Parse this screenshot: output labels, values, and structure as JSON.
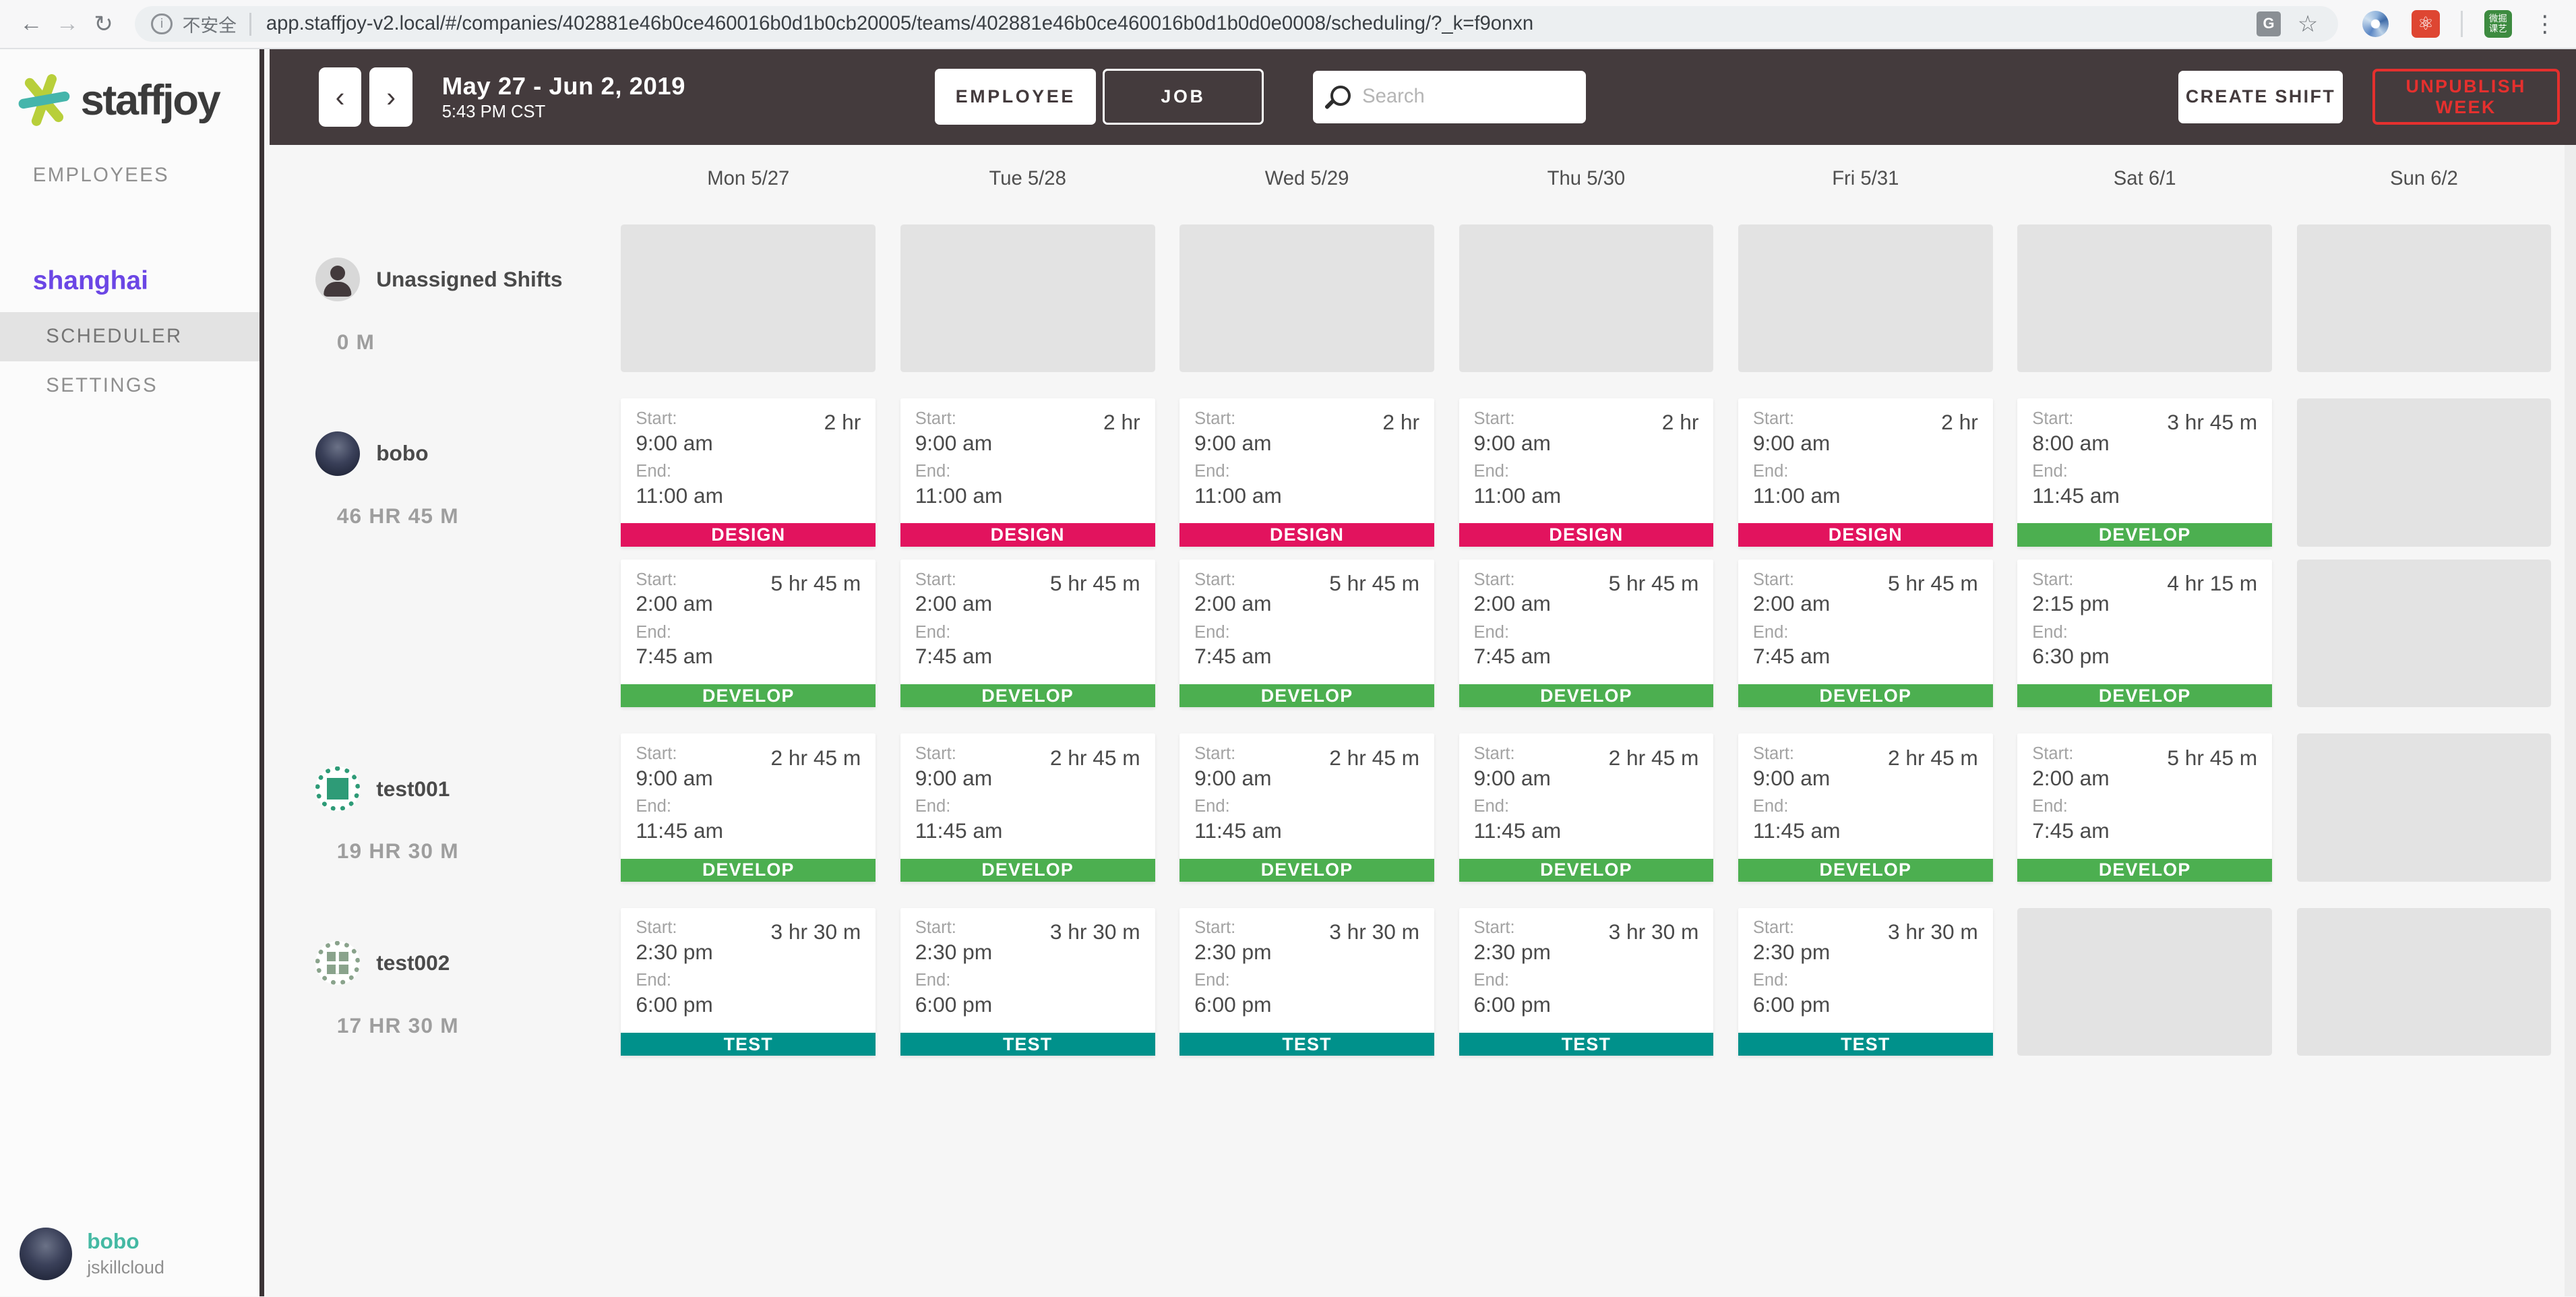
{
  "browser": {
    "security_label": "不安全",
    "url": "app.staffjoy-v2.local/#/companies/402881e46b0ce460016b0d1b0cb20005/teams/402881e46b0ce460016b0d1b0d0e0008/scheduling/?_k=f9onxn",
    "extension_seal_text": "微掘课艺",
    "icons": {
      "back": "←",
      "forward": "→",
      "reload": "↻",
      "info": "i",
      "bookmark": "☆",
      "atom": "⚛",
      "translate": "G",
      "overflow": "⋮"
    }
  },
  "sidebar": {
    "logo_text": "staffjoy",
    "employees_label": "EMPLOYEES",
    "team_name": "shanghai",
    "scheduler_label": "SCHEDULER",
    "settings_label": "SETTINGS",
    "user": {
      "name": "bobo",
      "company": "jskillcloud"
    }
  },
  "header": {
    "week_label": "May 27 - Jun 2, 2019",
    "time_label": "5:43 PM CST",
    "icons": {
      "prev": "‹",
      "next": "›"
    },
    "employee_toggle": "EMPLOYEE",
    "job_toggle": "JOB",
    "search_placeholder": "Search",
    "create_shift_label": "CREATE SHIFT",
    "unpublish_label": "UNPUBLISH WEEK"
  },
  "colors": {
    "topbar_bg": "#443b3d",
    "accent_purple": "#6b46e5",
    "accent_teal": "#44b9a3",
    "danger_red": "#e5302e",
    "placeholder_gray": "#e3e3e3",
    "job_colors": {
      "DESIGN": "#e2135e",
      "DEVELOP": "#4caf50",
      "TEST": "#00918b"
    }
  },
  "calendar": {
    "start_label": "Start:",
    "end_label": "End:",
    "days": [
      "Mon 5/27",
      "Tue 5/28",
      "Wed 5/29",
      "Thu 5/30",
      "Fri 5/31",
      "Sat 6/1",
      "Sun 6/2"
    ],
    "rows": [
      {
        "id": "unassigned",
        "name": "Unassigned Shifts",
        "hours": "0 M",
        "avatar": "person",
        "shift_rows": [
          [
            null,
            null,
            null,
            null,
            null,
            null,
            null
          ]
        ]
      },
      {
        "id": "bobo",
        "name": "bobo",
        "hours": "46 HR 45 M",
        "avatar": "photo",
        "shift_rows": [
          [
            {
              "start": "9:00 am",
              "end": "11:00 am",
              "duration": "2 hr",
              "job": "DESIGN"
            },
            {
              "start": "9:00 am",
              "end": "11:00 am",
              "duration": "2 hr",
              "job": "DESIGN"
            },
            {
              "start": "9:00 am",
              "end": "11:00 am",
              "duration": "2 hr",
              "job": "DESIGN"
            },
            {
              "start": "9:00 am",
              "end": "11:00 am",
              "duration": "2 hr",
              "job": "DESIGN"
            },
            {
              "start": "9:00 am",
              "end": "11:00 am",
              "duration": "2 hr",
              "job": "DESIGN"
            },
            {
              "start": "8:00 am",
              "end": "11:45 am",
              "duration": "3 hr 45 m",
              "job": "DEVELOP"
            },
            null
          ],
          [
            {
              "start": "2:00 am",
              "end": "7:45 am",
              "duration": "5 hr 45 m",
              "job": "DEVELOP"
            },
            {
              "start": "2:00 am",
              "end": "7:45 am",
              "duration": "5 hr 45 m",
              "job": "DEVELOP"
            },
            {
              "start": "2:00 am",
              "end": "7:45 am",
              "duration": "5 hr 45 m",
              "job": "DEVELOP"
            },
            {
              "start": "2:00 am",
              "end": "7:45 am",
              "duration": "5 hr 45 m",
              "job": "DEVELOP"
            },
            {
              "start": "2:00 am",
              "end": "7:45 am",
              "duration": "5 hr 45 m",
              "job": "DEVELOP"
            },
            {
              "start": "2:15 pm",
              "end": "6:30 pm",
              "duration": "4 hr 15 m",
              "job": "DEVELOP"
            },
            null
          ]
        ]
      },
      {
        "id": "test001",
        "name": "test001",
        "hours": "19 HR 30 M",
        "avatar": "identicon-green",
        "shift_rows": [
          [
            {
              "start": "9:00 am",
              "end": "11:45 am",
              "duration": "2 hr 45 m",
              "job": "DEVELOP"
            },
            {
              "start": "9:00 am",
              "end": "11:45 am",
              "duration": "2 hr 45 m",
              "job": "DEVELOP"
            },
            {
              "start": "9:00 am",
              "end": "11:45 am",
              "duration": "2 hr 45 m",
              "job": "DEVELOP"
            },
            {
              "start": "9:00 am",
              "end": "11:45 am",
              "duration": "2 hr 45 m",
              "job": "DEVELOP"
            },
            {
              "start": "9:00 am",
              "end": "11:45 am",
              "duration": "2 hr 45 m",
              "job": "DEVELOP"
            },
            {
              "start": "2:00 am",
              "end": "7:45 am",
              "duration": "5 hr 45 m",
              "job": "DEVELOP"
            },
            null
          ]
        ]
      },
      {
        "id": "test002",
        "name": "test002",
        "hours": "17 HR 30 M",
        "avatar": "identicon-sage",
        "shift_rows": [
          [
            {
              "start": "2:30 pm",
              "end": "6:00 pm",
              "duration": "3 hr 30 m",
              "job": "TEST"
            },
            {
              "start": "2:30 pm",
              "end": "6:00 pm",
              "duration": "3 hr 30 m",
              "job": "TEST"
            },
            {
              "start": "2:30 pm",
              "end": "6:00 pm",
              "duration": "3 hr 30 m",
              "job": "TEST"
            },
            {
              "start": "2:30 pm",
              "end": "6:00 pm",
              "duration": "3 hr 30 m",
              "job": "TEST"
            },
            {
              "start": "2:30 pm",
              "end": "6:00 pm",
              "duration": "3 hr 30 m",
              "job": "TEST"
            },
            null,
            null
          ]
        ]
      }
    ]
  }
}
